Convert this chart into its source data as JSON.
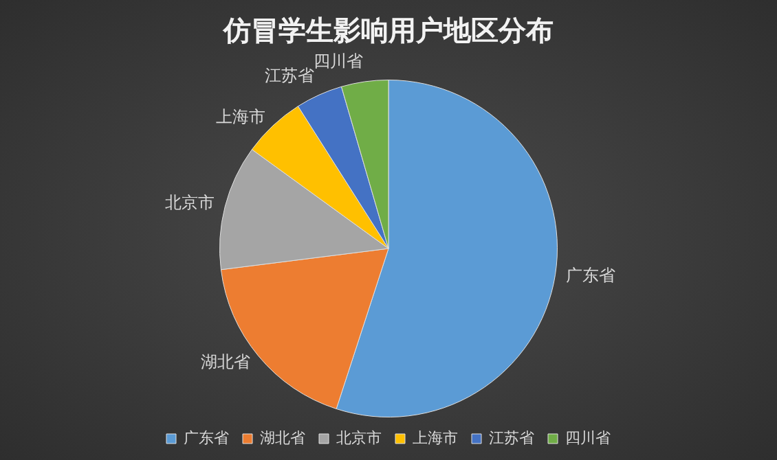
{
  "chart_data": {
    "type": "pie",
    "title": "仿冒学生影响用户地区分布",
    "categories": [
      "广东省",
      "湖北省",
      "北京市",
      "上海市",
      "江苏省",
      "四川省"
    ],
    "values": [
      55,
      18,
      12,
      6,
      4.5,
      4.5
    ],
    "colors": [
      "#5b9bd5",
      "#ed7d31",
      "#a5a5a5",
      "#ffc000",
      "#4472c4",
      "#70ad47"
    ],
    "legend": "bottom"
  }
}
